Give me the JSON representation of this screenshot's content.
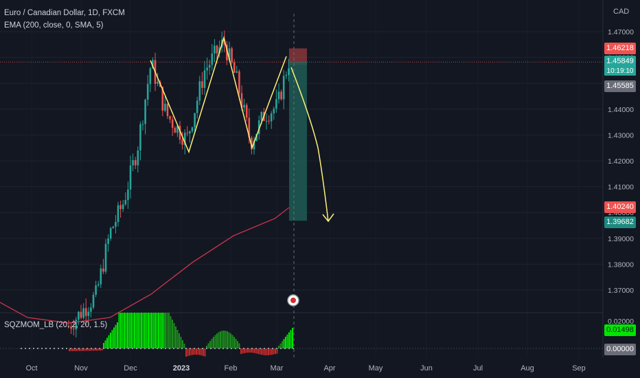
{
  "header": {
    "title": "Euro / Canadian Dollar, 1D, FXCM",
    "indicator": "EMA (200, close, 0, SMA, 5)",
    "currency": "CAD"
  },
  "oscillator": {
    "label": "SQZMOM_LB (20, 2, 20, 1.5)",
    "value_tag": "0.01498",
    "zero_tag": "0.00000",
    "tick_label": "0.02000"
  },
  "price_tags": {
    "stop": "1.46218",
    "current": "1.45849",
    "timer": "10:19:10",
    "gray": "1.45585",
    "ema": "1.40240",
    "target": "1.39682"
  },
  "colors": {
    "background": "#131722",
    "up_candle": "#26a69a",
    "down_candle": "#ef5350",
    "ema": "#c2334a",
    "pattern": "#fff176",
    "stop_zone": "#ef5350",
    "target_zone": "#1e5c55",
    "mom_up_strong": "#00e600",
    "mom_up_weak": "#1b8f1b",
    "mom_down": "#c62828"
  },
  "chart_data": {
    "type": "candlestick",
    "symbol": "EURCAD",
    "y_axis_ticks": [
      1.47,
      1.46,
      1.45,
      1.44,
      1.43,
      1.42,
      1.41,
      1.4,
      1.39,
      1.38,
      1.37
    ],
    "y_axis_labels": [
      "1.47000",
      "1.46000",
      "1.45000",
      "1.44000",
      "1.43000",
      "1.42000",
      "1.41000",
      "1.40000",
      "1.39000",
      "1.38000",
      "1.37000"
    ],
    "x_axis_labels": [
      "Oct",
      "Nov",
      "Dec",
      "2023",
      "Feb",
      "Mar",
      "Apr",
      "May",
      "Jun",
      "Jul",
      "Aug",
      "Sep"
    ],
    "ylim": [
      1.362,
      1.478
    ],
    "pattern_points": [
      [
        1.4587,
        "Dec"
      ],
      [
        1.4245,
        "Jan"
      ],
      [
        1.4668,
        "Jan"
      ],
      [
        1.4245,
        "Feb"
      ],
      [
        1.4597,
        "Mar"
      ]
    ],
    "projection_target": 1.3965,
    "position": {
      "entry": 1.45849,
      "stop": 1.46218,
      "target": 1.39682
    },
    "ema_200_last": 1.4024,
    "squeeze_momentum_last": 0.01498
  }
}
